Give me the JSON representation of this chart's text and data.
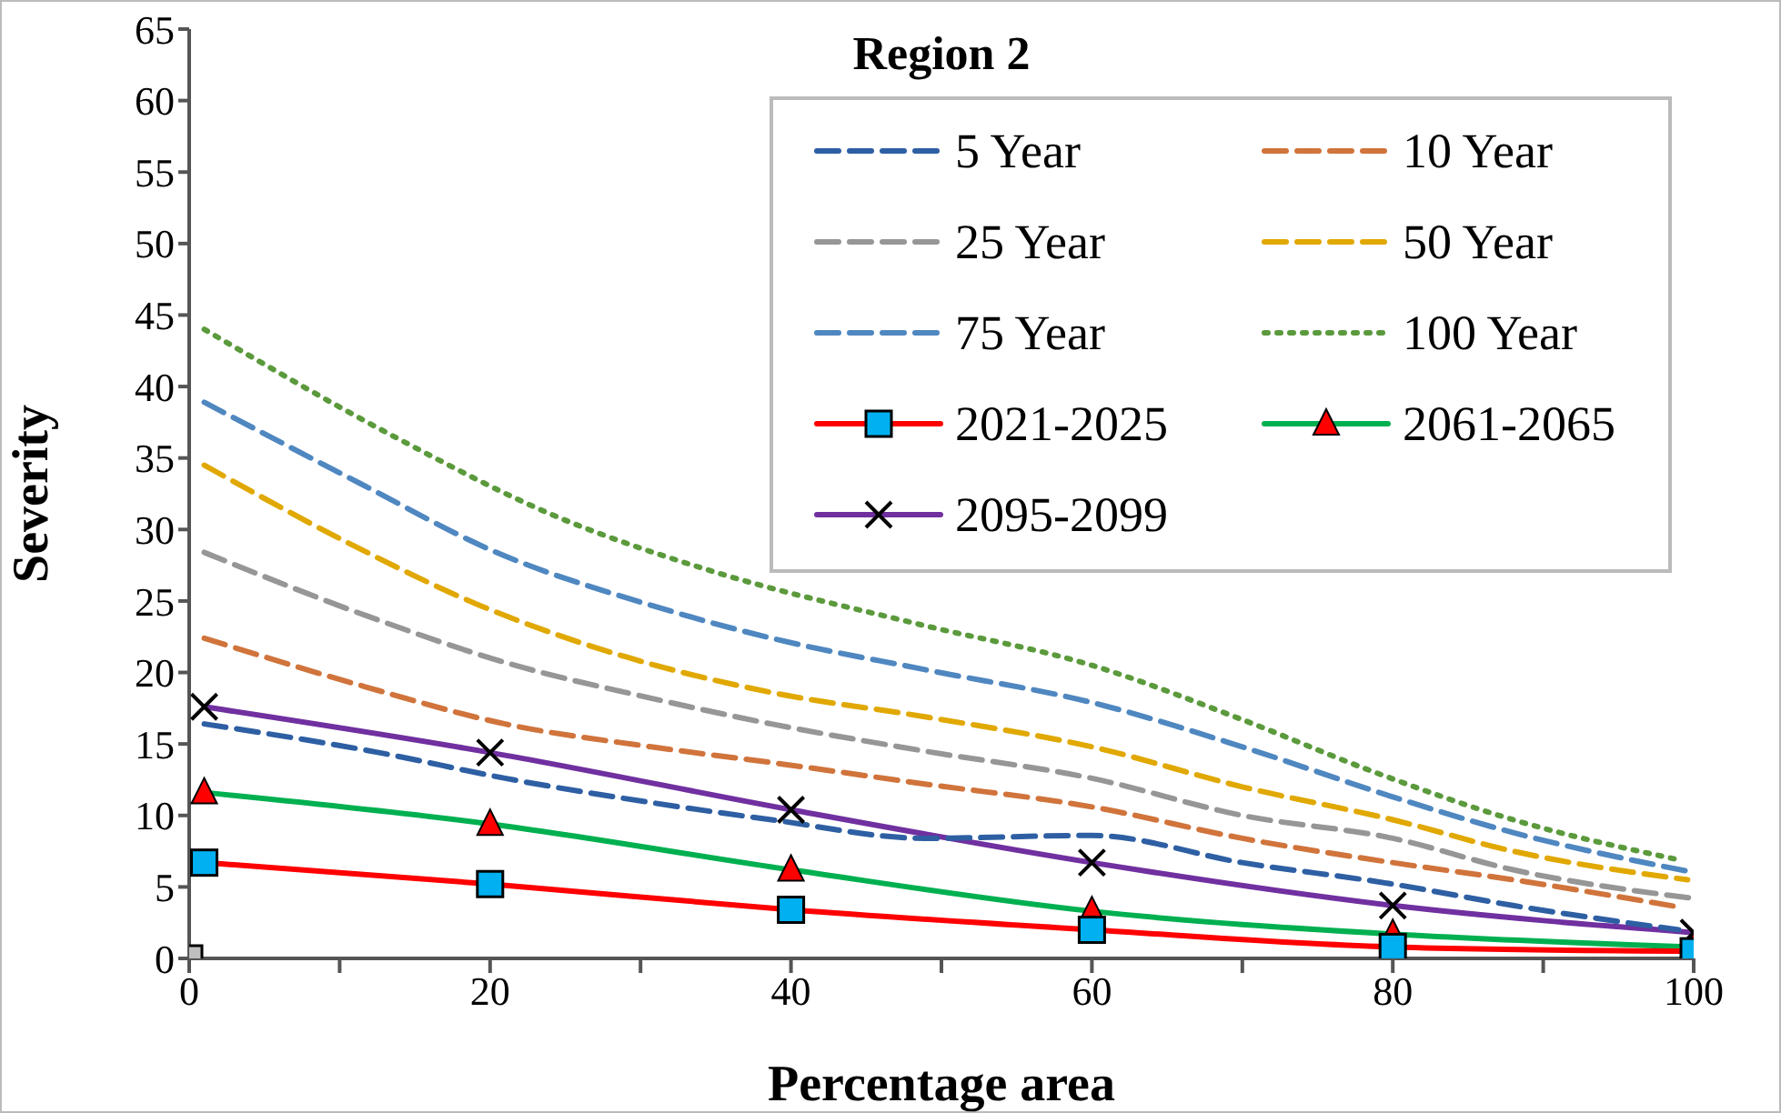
{
  "chart_data": {
    "type": "line",
    "title": "Region 2",
    "xlabel": "Percentage area",
    "ylabel": "Severity",
    "xlim": [
      0,
      100
    ],
    "xticks": [
      0,
      {
        "value": 10,
        "label": null
      },
      20,
      {
        "value": 30,
        "label": null
      },
      40,
      {
        "value": 50,
        "label": null
      },
      60,
      {
        "value": 70,
        "label": null
      },
      80,
      {
        "value": 90,
        "label": null
      },
      100
    ],
    "ylim": [
      0,
      65
    ],
    "yticks": [
      0,
      5,
      10,
      15,
      20,
      25,
      30,
      35,
      40,
      45,
      50,
      55,
      60,
      65
    ],
    "grid": false,
    "legend": "top right",
    "series": [
      {
        "name": "5 Year",
        "color": "#2e5fa3",
        "line_style": "dashed",
        "marker": "none",
        "x": [
          1,
          12.6,
          21,
          30.7,
          38.7,
          48.9,
          60,
          70,
          80,
          88,
          99
        ],
        "values": [
          16.4,
          14.4,
          12.6,
          10.9,
          9.7,
          8.4,
          8.6,
          6.7,
          5.2,
          3.7,
          2.0
        ]
      },
      {
        "name": "10 Year",
        "color": "#d0743c",
        "line_style": "dashed",
        "marker": "none",
        "x": [
          1,
          11.7,
          21,
          30.7,
          38.7,
          48.9,
          60,
          70,
          80,
          88,
          99
        ],
        "values": [
          22.4,
          19.0,
          16.4,
          14.8,
          13.7,
          12.2,
          10.6,
          8.4,
          6.7,
          5.5,
          3.6
        ]
      },
      {
        "name": "25 Year",
        "color": "#969696",
        "line_style": "dashed",
        "marker": "none",
        "x": [
          1,
          11.7,
          21,
          30.7,
          38.7,
          48.9,
          60,
          70,
          80,
          88,
          100
        ],
        "values": [
          28.4,
          24.0,
          20.7,
          18.2,
          16.4,
          14.5,
          12.6,
          10.0,
          8.4,
          6.2,
          4.2
        ]
      },
      {
        "name": "50 Year",
        "color": "#e0a800",
        "line_style": "dashed",
        "marker": "none",
        "x": [
          1,
          10.5,
          19.3,
          29,
          38.7,
          48.9,
          60,
          70,
          80,
          88,
          99.6
        ],
        "values": [
          34.5,
          29.1,
          24.7,
          21.1,
          18.6,
          16.9,
          14.8,
          12.0,
          9.7,
          7.5,
          5.5
        ]
      },
      {
        "name": "75 Year",
        "color": "#4f87c0",
        "line_style": "dashed",
        "marker": "none",
        "x": [
          1,
          11.4,
          20.2,
          30.7,
          38.7,
          48.9,
          60,
          70,
          80,
          88,
          99.6
        ],
        "values": [
          38.9,
          33.2,
          28.5,
          24.7,
          22.4,
          20.2,
          17.9,
          14.8,
          11.3,
          8.8,
          6.1
        ]
      },
      {
        "name": "100 Year",
        "color": "#5b9a3c",
        "line_style": "dotted",
        "marker": "none",
        "x": [
          1,
          13.8,
          24.2,
          34.7,
          48.4,
          60,
          70,
          78.6,
          88,
          99
        ],
        "values": [
          44.0,
          36.4,
          31.0,
          27.1,
          23.4,
          20.5,
          16.7,
          13.1,
          9.7,
          6.9
        ]
      },
      {
        "name": "2021-2025",
        "color": "#ff0000",
        "line_style": "solid",
        "marker": "square",
        "colors": [
          "#00b0f0",
          "#00b0f0",
          "#00b0f0",
          "#00b0f0",
          "#00b0f0",
          "#00b0f0"
        ],
        "x": [
          1,
          20,
          40,
          60,
          80,
          100
        ],
        "values": [
          6.7,
          5.2,
          3.4,
          2.0,
          0.8,
          0.5
        ]
      },
      {
        "name": "2061-2065",
        "color": "#00b050",
        "line_style": "solid",
        "marker": "triangle",
        "colors": [
          "#ff0000",
          "#ff0000",
          "#ff0000",
          "#ff0000",
          "#ff0000",
          "#ff0000"
        ],
        "x": [
          1,
          20,
          40,
          60,
          80,
          100
        ],
        "values": [
          11.6,
          9.4,
          6.2,
          3.3,
          1.7,
          0.8
        ]
      },
      {
        "name": "2095-2099",
        "color": "#7030a0",
        "line_style": "solid",
        "marker": "cross",
        "colors": [
          "#000000",
          "#000000",
          "#000000",
          "#000000",
          "#000000",
          "#000000"
        ],
        "x": [
          1,
          20,
          40,
          60,
          80,
          100
        ],
        "values": [
          17.6,
          14.4,
          10.4,
          6.7,
          3.7,
          1.8
        ]
      },
      {
        "type": "scatter",
        "color": "#bfbfbf",
        "marker": "square",
        "x": [
          0
        ],
        "values": [
          0
        ]
      }
    ]
  }
}
